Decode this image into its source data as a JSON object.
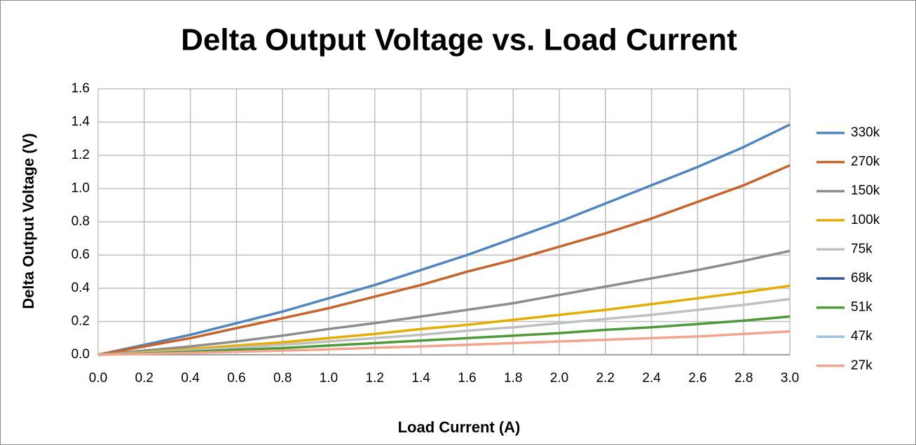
{
  "chart_data": {
    "type": "line",
    "title": "Delta Output Voltage vs. Load Current",
    "x_label": "Load Current (A)",
    "y_label": "Delta Output Voltage (V)",
    "x": [
      0,
      0.2,
      0.4,
      0.6,
      0.8,
      1.0,
      1.2,
      1.4,
      1.6,
      1.8,
      2.0,
      2.2,
      2.4,
      2.6,
      2.8,
      3.0
    ],
    "series": [
      {
        "name": "330k",
        "color": "#4f86c0",
        "values": [
          0,
          0.06,
          0.12,
          0.19,
          0.26,
          0.34,
          0.42,
          0.51,
          0.6,
          0.7,
          0.8,
          0.91,
          1.02,
          1.13,
          1.25,
          1.385
        ]
      },
      {
        "name": "270k",
        "color": "#c8632a",
        "values": [
          0,
          0.05,
          0.1,
          0.16,
          0.22,
          0.28,
          0.35,
          0.42,
          0.5,
          0.57,
          0.65,
          0.73,
          0.82,
          0.92,
          1.02,
          1.14
        ]
      },
      {
        "name": "150k",
        "color": "#8c8c8c",
        "values": [
          0,
          0.025,
          0.05,
          0.08,
          0.115,
          0.155,
          0.19,
          0.23,
          0.27,
          0.31,
          0.36,
          0.41,
          0.46,
          0.51,
          0.565,
          0.625
        ]
      },
      {
        "name": "100k",
        "color": "#e6ac00",
        "values": [
          0,
          0.015,
          0.035,
          0.055,
          0.075,
          0.1,
          0.125,
          0.155,
          0.18,
          0.21,
          0.24,
          0.27,
          0.305,
          0.34,
          0.375,
          0.415
        ]
      },
      {
        "name": "75k",
        "color": "#bfbfbf",
        "values": [
          0,
          0.012,
          0.027,
          0.043,
          0.06,
          0.08,
          0.1,
          0.12,
          0.145,
          0.165,
          0.19,
          0.215,
          0.24,
          0.27,
          0.3,
          0.335
        ]
      },
      {
        "name": "68k",
        "color": "#2f5597",
        "values": [
          null,
          null,
          null,
          null,
          null,
          null,
          null,
          null,
          null,
          null,
          null,
          null,
          null,
          null,
          null,
          null
        ]
      },
      {
        "name": "51k",
        "color": "#4e9a3a",
        "values": [
          0,
          0.008,
          0.018,
          0.03,
          0.04,
          0.055,
          0.07,
          0.085,
          0.1,
          0.115,
          0.13,
          0.15,
          0.165,
          0.185,
          0.205,
          0.23
        ]
      },
      {
        "name": "47k",
        "color": "#9dc3e6",
        "values": [
          null,
          null,
          null,
          null,
          null,
          null,
          null,
          null,
          null,
          null,
          null,
          null,
          null,
          null,
          null,
          null
        ]
      },
      {
        "name": "27k",
        "color": "#f2a48c",
        "values": [
          0,
          0.005,
          0.011,
          0.018,
          0.025,
          0.033,
          0.042,
          0.05,
          0.06,
          0.07,
          0.08,
          0.09,
          0.1,
          0.11,
          0.125,
          0.14
        ]
      }
    ],
    "xlim": [
      0,
      3
    ],
    "xticks": [
      {
        "value": 0,
        "label": "0.0"
      },
      0.2,
      0.4,
      0.6,
      0.8,
      {
        "value": 1,
        "label": "1.0"
      },
      1.2,
      1.4,
      1.6,
      1.8,
      {
        "value": 2,
        "label": "2.0"
      },
      2.2,
      2.4,
      2.6,
      2.8,
      {
        "value": 3,
        "label": "3.0"
      }
    ],
    "ylim": [
      0,
      1.6
    ],
    "yticks": [
      {
        "value": 0,
        "label": "0.0"
      },
      0.2,
      0.4,
      0.6,
      0.8,
      {
        "value": 1,
        "label": "1.0"
      },
      1.2,
      1.4,
      1.6
    ],
    "grid": true,
    "legend": "right"
  }
}
